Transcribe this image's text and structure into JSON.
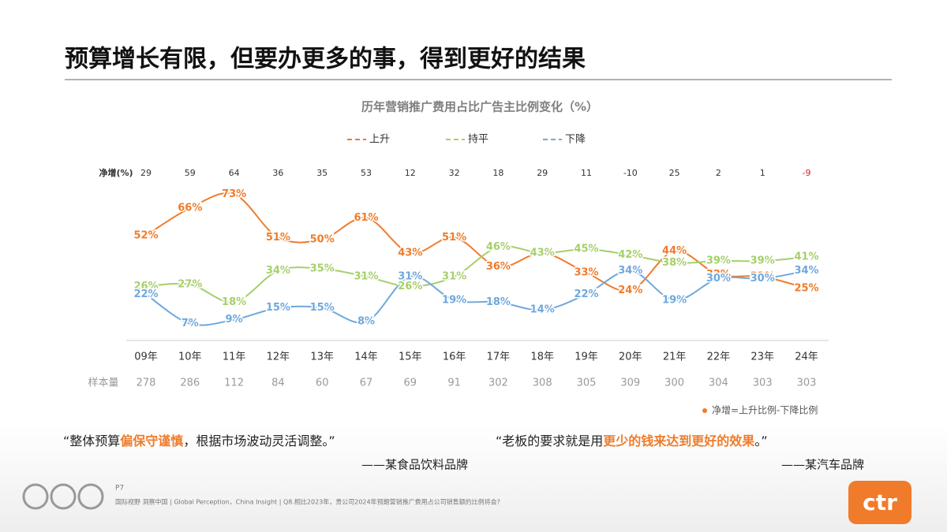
{
  "header": {
    "title": "预算增长有限，但要办更多的事，得到更好的结果"
  },
  "chart_data": {
    "type": "line",
    "title": "历年营销推广费用占比广告主比例变化（%）",
    "categories": [
      "09年",
      "10年",
      "11年",
      "12年",
      "13年",
      "14年",
      "15年",
      "16年",
      "17年",
      "18年",
      "19年",
      "20年",
      "21年",
      "22年",
      "23年",
      "24年"
    ],
    "series": [
      {
        "name": "上升",
        "color": "#f07b2a",
        "values": [
          52,
          66,
          73,
          51,
          50,
          61,
          43,
          51,
          36,
          43,
          33,
          24,
          44,
          32,
          31,
          25
        ],
        "value_labels": [
          "52%",
          "66%",
          "73%",
          "51%",
          "50%",
          "61%",
          "43%",
          "51%",
          "36%",
          "43%",
          "33%",
          "24%",
          "44%",
          "32%",
          "31%",
          "25%"
        ]
      },
      {
        "name": "持平",
        "color": "#a6cf6b",
        "values": [
          26,
          27,
          18,
          34,
          35,
          31,
          26,
          31,
          46,
          43,
          45,
          42,
          38,
          39,
          39,
          41
        ],
        "value_labels": [
          "26%",
          "27%",
          "18%",
          "34%",
          "35%",
          "31%",
          "26%",
          "31%",
          "46%",
          "43%",
          "45%",
          "42%",
          "38%",
          "39%",
          "39%",
          "41%"
        ]
      },
      {
        "name": "下降",
        "color": "#6fa8dc",
        "values": [
          22,
          7,
          9,
          15,
          15,
          8,
          31,
          19,
          18,
          14,
          22,
          34,
          19,
          30,
          30,
          34
        ],
        "value_labels": [
          "22%",
          "7%",
          "9%",
          "15%",
          "15%",
          "8%",
          "31%",
          "19%",
          "18%",
          "14%",
          "22%",
          "34%",
          "19%",
          "30%",
          "30%",
          "34%"
        ]
      }
    ],
    "net_label": "净增(%)",
    "net_values": [
      29,
      59,
      64,
      36,
      35,
      53,
      12,
      32,
      18,
      29,
      11,
      -10,
      25,
      2,
      1,
      -9
    ],
    "sample_label": "样本量",
    "sample_sizes": [
      278,
      286,
      112,
      84,
      60,
      67,
      69,
      91,
      302,
      308,
      305,
      309,
      300,
      304,
      303,
      303
    ],
    "note": "净增=上升比例-下降比例",
    "legend": "top"
  },
  "quotes": [
    {
      "parts": [
        {
          "text": "“整体预算",
          "highlight": false
        },
        {
          "text": "偏保守谨慎",
          "highlight": true
        },
        {
          "text": "，根据市场波动灵活调整。”",
          "highlight": false
        }
      ],
      "source": "——某食品饮料品牌"
    },
    {
      "parts": [
        {
          "text": "“老板的要求就是用",
          "highlight": false
        },
        {
          "text": "更少的钱来达到更好的效果",
          "highlight": true
        },
        {
          "text": "。”",
          "highlight": false
        }
      ],
      "source": "——某汽车品牌"
    }
  ],
  "footer": {
    "page": "P7",
    "text": "国际视野 洞察中国 | Global Perception，China Insight | Q8.相比2023年，贵公司2024年预期营销推广费用占公司销售额的比例将会?"
  },
  "logo": "ctr"
}
